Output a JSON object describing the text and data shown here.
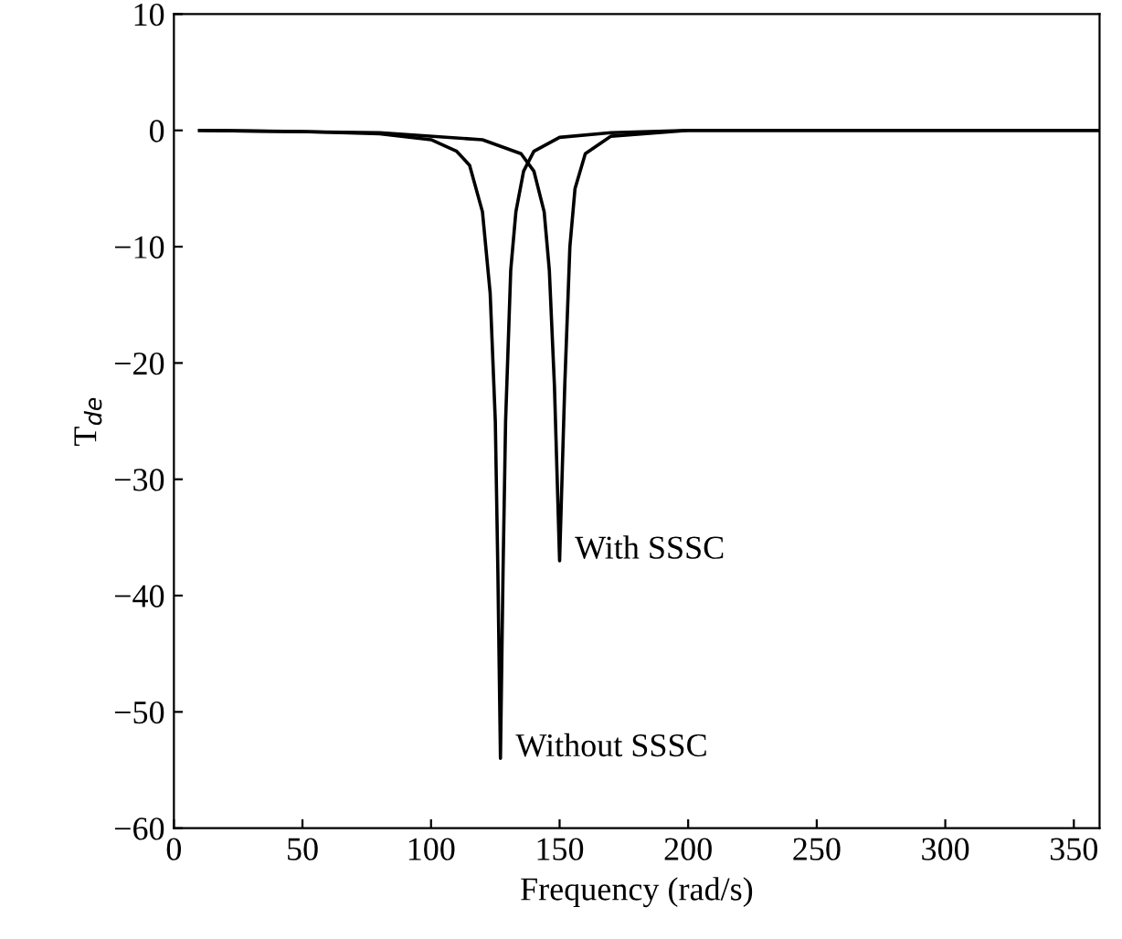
{
  "chart_data": {
    "type": "line",
    "xlabel": "Frequency (rad/s)",
    "ylabel": "T$_{de}$",
    "xlim": [
      0,
      360
    ],
    "ylim": [
      -60,
      10
    ],
    "xticks": [
      0,
      50,
      100,
      150,
      200,
      250,
      300,
      350
    ],
    "yticks": [
      -60,
      -50,
      -40,
      -30,
      -20,
      -10,
      0,
      10
    ],
    "grid": false,
    "legend": false,
    "series": [
      {
        "color": "#000000",
        "x": [
          10,
          50,
          80,
          100,
          110,
          115,
          120,
          123,
          125,
          126,
          127,
          128,
          129,
          131,
          133,
          136,
          140,
          150,
          170,
          200,
          360
        ],
        "values": [
          0,
          -0.1,
          -0.3,
          -0.8,
          -1.8,
          -3,
          -7,
          -14,
          -25,
          -38,
          -54,
          -38,
          -25,
          -12,
          -7,
          -3.5,
          -1.8,
          -0.6,
          -0.2,
          0,
          0
        ]
      },
      {
        "color": "#000000",
        "x": [
          10,
          80,
          120,
          135,
          140,
          144,
          146,
          148,
          150,
          152,
          154,
          156,
          160,
          170,
          200,
          360
        ],
        "values": [
          0,
          -0.2,
          -0.8,
          -2,
          -3.5,
          -7,
          -12,
          -22,
          -37,
          -22,
          -10,
          -5,
          -2,
          -0.5,
          0,
          0
        ]
      }
    ],
    "annotations": [
      {
        "text": "With SSSC",
        "x": 150,
        "y": -37
      },
      {
        "text": "Without SSSC",
        "x": 127,
        "y": -54
      }
    ]
  }
}
